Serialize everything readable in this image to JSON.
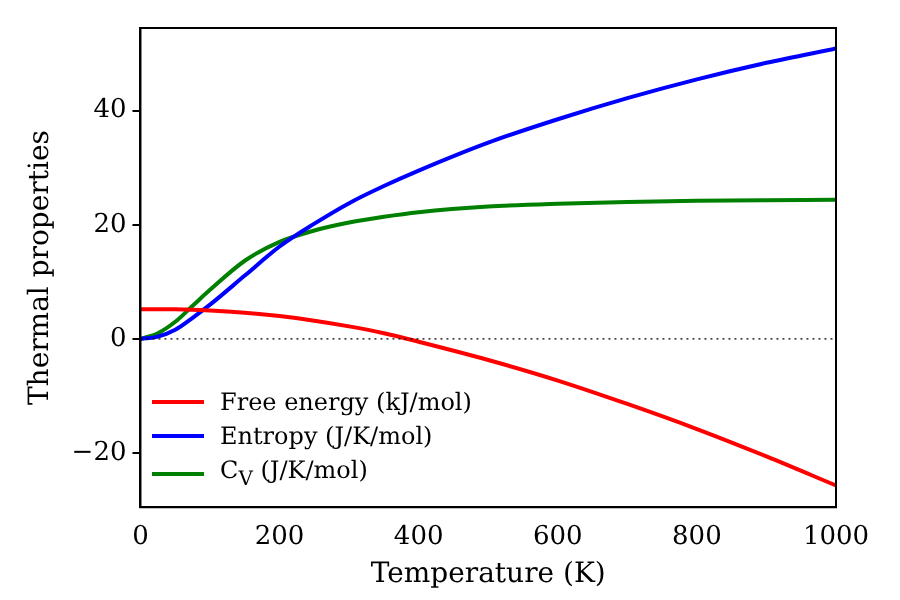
{
  "chart_data": {
    "type": "line",
    "xlabel": "Temperature (K)",
    "ylabel": "Thermal properties",
    "x": [
      0,
      25,
      50,
      75,
      100,
      150,
      200,
      250,
      300,
      350,
      400,
      500,
      600,
      700,
      800,
      900,
      1000
    ],
    "series": [
      {
        "name": "Free energy (kJ/mol)",
        "color": "#ff0000",
        "values": [
          5.2,
          5.2,
          5.2,
          5.1,
          5.0,
          4.6,
          4.0,
          3.2,
          2.2,
          1.0,
          -0.5,
          -3.7,
          -7.3,
          -11.4,
          -15.8,
          -20.6,
          -25.7
        ]
      },
      {
        "name": "Entropy (J/K/mol)",
        "color": "#0000ff",
        "values": [
          0,
          0.4,
          1.6,
          3.7,
          6.0,
          11.1,
          16.2,
          20.2,
          23.8,
          26.8,
          29.5,
          34.4,
          38.5,
          42.2,
          45.5,
          48.4,
          50.9
        ]
      },
      {
        "name": "C$_{V}$ (J/K/mol)",
        "color": "#008000",
        "values": [
          0,
          1.0,
          3.0,
          5.8,
          8.6,
          13.7,
          17.0,
          19.0,
          20.4,
          21.4,
          22.2,
          23.2,
          23.7,
          24.0,
          24.2,
          24.3,
          24.4
        ]
      }
    ],
    "xlim": [
      0,
      1000
    ],
    "xticks": [
      0,
      200,
      400,
      600,
      800,
      1000
    ],
    "ylim": [
      -29.5,
      54.5
    ],
    "yticks": [
      -20,
      0,
      20,
      40
    ],
    "ref_lines": [
      {
        "axis": "y",
        "value": 0,
        "color": "#000000",
        "line_style": "dotted"
      }
    ],
    "grid": false,
    "legend": "bottom left",
    "marker": "none",
    "line_style": "solid"
  }
}
